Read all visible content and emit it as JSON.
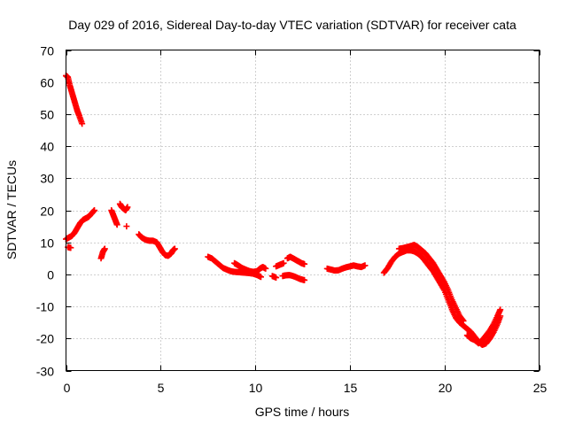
{
  "chart_data": {
    "type": "scatter",
    "title": "Day 029 of 2016, Sidereal Day-to-day VTEC variation (SDTVAR) for receiver cata",
    "xlabel": "GPS time / hours",
    "ylabel": "SDTVAR / TECUs",
    "xlim": [
      0,
      25
    ],
    "ylim": [
      -30,
      70
    ],
    "xticks": [
      0,
      5,
      10,
      15,
      20,
      25
    ],
    "yticks": [
      -30,
      -20,
      -10,
      0,
      10,
      20,
      30,
      40,
      50,
      60,
      70
    ],
    "xtick_labels": [
      "0",
      "5",
      "10",
      "15",
      "20",
      "25"
    ],
    "ytick_labels": [
      "-30",
      "-20",
      "-10",
      "0",
      "10",
      "20",
      "30",
      "40",
      "50",
      "60",
      "70"
    ],
    "grid": true,
    "marker": "+",
    "color": "#ff0000",
    "series": [
      {
        "name": "segment-1",
        "points": [
          [
            0.0,
            62
          ],
          [
            0.1,
            61.5
          ],
          [
            0.2,
            59
          ],
          [
            0.3,
            57
          ],
          [
            0.4,
            55
          ],
          [
            0.5,
            53
          ],
          [
            0.6,
            51
          ],
          [
            0.7,
            49.5
          ],
          [
            0.85,
            47
          ]
        ]
      },
      {
        "name": "segment-2",
        "points": [
          [
            0.0,
            11
          ],
          [
            0.15,
            11.5
          ],
          [
            0.3,
            12
          ],
          [
            0.45,
            13
          ],
          [
            0.6,
            14.5
          ],
          [
            0.75,
            16
          ],
          [
            0.9,
            17
          ],
          [
            1.05,
            17.5
          ],
          [
            1.2,
            18
          ],
          [
            1.35,
            19
          ],
          [
            1.5,
            20
          ]
        ]
      },
      {
        "name": "segment-3",
        "points": [
          [
            0.1,
            8.5
          ],
          [
            0.25,
            8.3
          ]
        ]
      },
      {
        "name": "segment-4",
        "points": [
          [
            1.85,
            5
          ],
          [
            1.95,
            7
          ],
          [
            2.05,
            8
          ]
        ]
      },
      {
        "name": "segment-5",
        "points": [
          [
            2.4,
            20
          ],
          [
            2.5,
            18.5
          ],
          [
            2.6,
            17
          ],
          [
            2.7,
            15.5
          ]
        ]
      },
      {
        "name": "segment-6",
        "points": [
          [
            2.85,
            22
          ],
          [
            2.95,
            21
          ],
          [
            3.05,
            20.5
          ],
          [
            3.15,
            20
          ],
          [
            3.25,
            21
          ]
        ]
      },
      {
        "name": "segment-7",
        "points": [
          [
            3.2,
            15
          ]
        ]
      },
      {
        "name": "segment-8",
        "points": [
          [
            3.85,
            12.5
          ],
          [
            4.0,
            11.5
          ],
          [
            4.2,
            10.8
          ],
          [
            4.4,
            10.5
          ],
          [
            4.6,
            10.5
          ],
          [
            4.8,
            10
          ],
          [
            4.95,
            8.5
          ],
          [
            5.1,
            7
          ],
          [
            5.25,
            6
          ],
          [
            5.4,
            5.8
          ],
          [
            5.55,
            6.5
          ],
          [
            5.65,
            7.5
          ],
          [
            5.75,
            8
          ]
        ]
      },
      {
        "name": "segment-9",
        "points": [
          [
            7.5,
            5.5
          ],
          [
            7.7,
            5
          ],
          [
            7.9,
            4
          ],
          [
            8.1,
            3
          ],
          [
            8.3,
            2
          ],
          [
            8.5,
            1.5
          ],
          [
            8.7,
            1
          ],
          [
            8.9,
            0.8
          ],
          [
            9.1,
            0.7
          ],
          [
            9.3,
            0.6
          ],
          [
            9.5,
            0.5
          ],
          [
            9.7,
            0.4
          ],
          [
            9.9,
            0.2
          ],
          [
            10.1,
            -0.2
          ],
          [
            10.3,
            -0.8
          ]
        ]
      },
      {
        "name": "segment-10",
        "points": [
          [
            8.9,
            3.5
          ],
          [
            9.1,
            2.8
          ],
          [
            9.3,
            2
          ],
          [
            9.5,
            1.5
          ],
          [
            9.7,
            1
          ],
          [
            9.9,
            0.8
          ],
          [
            10.1,
            1
          ],
          [
            10.25,
            1.8
          ],
          [
            10.4,
            2.3
          ],
          [
            10.55,
            1.8
          ]
        ]
      },
      {
        "name": "segment-11",
        "points": [
          [
            10.9,
            -0.5
          ],
          [
            11.1,
            -1
          ]
        ]
      },
      {
        "name": "segment-12",
        "points": [
          [
            11.1,
            2.5
          ],
          [
            11.3,
            3
          ],
          [
            11.5,
            3.5
          ]
        ]
      },
      {
        "name": "segment-13",
        "points": [
          [
            11.45,
            -0.5
          ],
          [
            11.6,
            -0.3
          ],
          [
            11.8,
            -0.2
          ],
          [
            12.0,
            -0.5
          ],
          [
            12.2,
            -1
          ],
          [
            12.4,
            -1.5
          ],
          [
            12.6,
            -1.8
          ]
        ]
      },
      {
        "name": "segment-14",
        "points": [
          [
            11.7,
            5
          ],
          [
            11.85,
            5.5
          ],
          [
            12.0,
            5
          ],
          [
            12.15,
            4.5
          ],
          [
            12.3,
            4
          ],
          [
            12.45,
            3.5
          ],
          [
            12.6,
            3.2
          ]
        ]
      },
      {
        "name": "segment-15",
        "points": [
          [
            13.8,
            1.8
          ],
          [
            14.0,
            1.5
          ],
          [
            14.2,
            1.2
          ],
          [
            14.4,
            1.3
          ],
          [
            14.6,
            1.8
          ],
          [
            14.8,
            2.2
          ],
          [
            15.0,
            2.5
          ],
          [
            15.2,
            2.8
          ],
          [
            15.4,
            2.5
          ],
          [
            15.6,
            2.3
          ],
          [
            15.8,
            2.8
          ]
        ]
      },
      {
        "name": "segment-16",
        "points": [
          [
            16.8,
            0.5
          ],
          [
            17.0,
            2
          ],
          [
            17.2,
            4
          ],
          [
            17.4,
            5.5
          ],
          [
            17.6,
            6.5
          ],
          [
            17.8,
            7
          ],
          [
            18.0,
            7.5
          ],
          [
            18.2,
            7.5
          ],
          [
            18.4,
            7.2
          ],
          [
            18.6,
            6.5
          ],
          [
            18.8,
            5.5
          ],
          [
            19.0,
            4
          ],
          [
            19.2,
            2.5
          ],
          [
            19.4,
            1
          ],
          [
            19.6,
            -1
          ],
          [
            19.8,
            -3
          ],
          [
            20.0,
            -5
          ],
          [
            20.2,
            -8
          ],
          [
            20.4,
            -11
          ],
          [
            20.6,
            -13.5
          ],
          [
            20.8,
            -15
          ],
          [
            21.0,
            -16
          ],
          [
            21.2,
            -17
          ],
          [
            21.4,
            -18
          ],
          [
            21.6,
            -19.5
          ],
          [
            21.8,
            -21
          ],
          [
            22.0,
            -22
          ],
          [
            22.2,
            -21.5
          ],
          [
            22.4,
            -20
          ],
          [
            22.6,
            -18
          ],
          [
            22.8,
            -15.5
          ],
          [
            22.95,
            -13
          ]
        ]
      },
      {
        "name": "segment-17",
        "points": [
          [
            17.6,
            8
          ],
          [
            17.8,
            8.2
          ],
          [
            18.0,
            8.5
          ],
          [
            18.2,
            8.8
          ],
          [
            18.4,
            9.2
          ],
          [
            18.6,
            8.5
          ],
          [
            18.8,
            7.5
          ],
          [
            19.0,
            6.5
          ],
          [
            19.2,
            5
          ],
          [
            19.4,
            3.5
          ],
          [
            19.6,
            1.5
          ],
          [
            19.8,
            -0.5
          ],
          [
            20.0,
            -2.5
          ],
          [
            20.2,
            -5
          ],
          [
            20.4,
            -8
          ],
          [
            20.6,
            -10.5
          ],
          [
            20.8,
            -13
          ],
          [
            21.0,
            -14.5
          ]
        ]
      },
      {
        "name": "segment-18",
        "points": [
          [
            21.2,
            -19
          ],
          [
            21.4,
            -20
          ],
          [
            21.6,
            -20.5
          ],
          [
            21.8,
            -21.5
          ],
          [
            22.0,
            -20.5
          ],
          [
            22.2,
            -19
          ],
          [
            22.4,
            -17.5
          ],
          [
            22.6,
            -15.5
          ],
          [
            22.8,
            -13
          ],
          [
            22.95,
            -11
          ]
        ]
      }
    ]
  }
}
